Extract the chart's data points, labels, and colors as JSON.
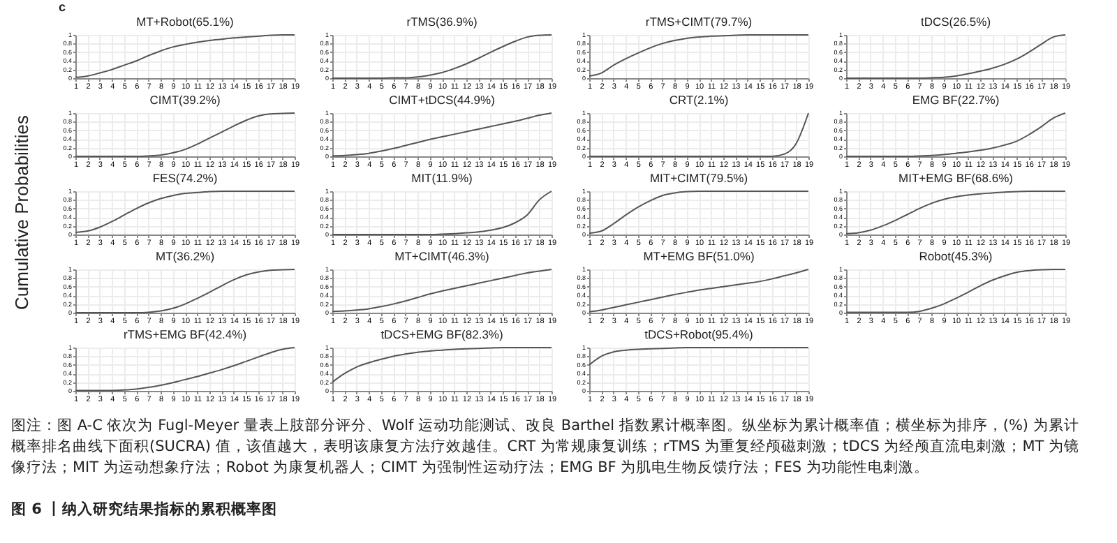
{
  "chart_data": [
    {
      "type": "line",
      "title": "MT+Robot(65.1%)",
      "annotations": [
        "c",
        "图注：图 A-C 依次为 Fugl-Meyer 量表上肢部分评分、Wolf 运动功能测试、改良 Barthel 指数累计概率图。纵坐标为累计概率值；横坐标为排序，(%) 为累计概率排名曲线下面积(SUCRA) 值，该值越大，表明该康复方法疗效越佳。CRT 为常规康复训练；rTMS 为重复经颅磁刺激；tDCS 为经颅直流电刺激；MT 为镜像疗法；MIT 为运动想象疗法；Robot 为康复机器人；CIMT 为强制性运动疗法；EMG BF 为肌电生物反馈疗法；FES 为功能性电刺激。",
        "图 6 丨纳入研究结果指标的累积概率图"
      ],
      "color": "#555555",
      "grid": true,
      "xlim": [
        1,
        19
      ],
      "ylim": [
        0,
        1
      ],
      "xticks": [
        1,
        2,
        3,
        4,
        5,
        6,
        7,
        8,
        9,
        10,
        11,
        12,
        13,
        14,
        15,
        16,
        17,
        18,
        19
      ],
      "yticks": [
        0,
        0.2,
        0.4,
        0.6,
        0.8,
        1
      ],
      "x": [
        1,
        2,
        3,
        4,
        5,
        6,
        7,
        8,
        9,
        10,
        11,
        12,
        13,
        14,
        15,
        16,
        17,
        18,
        19
      ],
      "values": [
        0.02,
        0.05,
        0.12,
        0.2,
        0.3,
        0.4,
        0.52,
        0.63,
        0.72,
        0.78,
        0.83,
        0.87,
        0.9,
        0.93,
        0.95,
        0.97,
        0.99,
        1,
        1
      ]
    },
    {
      "type": "line",
      "title": "rTMS(36.9%)",
      "color": "#555555",
      "grid": true,
      "xlim": [
        1,
        19
      ],
      "ylim": [
        0,
        1
      ],
      "xticks": [
        1,
        2,
        3,
        4,
        5,
        6,
        7,
        8,
        9,
        10,
        11,
        12,
        13,
        14,
        15,
        16,
        17,
        18,
        19
      ],
      "yticks": [
        0,
        0.2,
        0.4,
        0.6,
        0.8,
        1
      ],
      "x": [
        1,
        2,
        3,
        4,
        5,
        6,
        7,
        8,
        9,
        10,
        11,
        12,
        13,
        14,
        15,
        16,
        17,
        18,
        19
      ],
      "values": [
        0,
        0,
        0,
        0,
        0,
        0.01,
        0.01,
        0.03,
        0.07,
        0.13,
        0.22,
        0.33,
        0.46,
        0.6,
        0.73,
        0.85,
        0.95,
        0.99,
        1
      ]
    },
    {
      "type": "line",
      "title": "rTMS+CIMT(79.7%)",
      "color": "#555555",
      "grid": true,
      "xlim": [
        1,
        19
      ],
      "ylim": [
        0,
        1
      ],
      "xticks": [
        1,
        2,
        3,
        4,
        5,
        6,
        7,
        8,
        9,
        10,
        11,
        12,
        13,
        14,
        15,
        16,
        17,
        18,
        19
      ],
      "yticks": [
        0,
        0.2,
        0.4,
        0.6,
        0.8,
        1
      ],
      "x": [
        1,
        2,
        3,
        4,
        5,
        6,
        7,
        8,
        9,
        10,
        11,
        12,
        13,
        14,
        15,
        16,
        17,
        18,
        19
      ],
      "values": [
        0.05,
        0.12,
        0.3,
        0.45,
        0.58,
        0.7,
        0.8,
        0.87,
        0.92,
        0.95,
        0.97,
        0.98,
        0.99,
        1,
        1,
        1,
        1,
        1,
        1
      ]
    },
    {
      "type": "line",
      "title": "tDCS(26.5%)",
      "color": "#555555",
      "grid": true,
      "xlim": [
        1,
        19
      ],
      "ylim": [
        0,
        1
      ],
      "xticks": [
        1,
        2,
        3,
        4,
        5,
        6,
        7,
        8,
        9,
        10,
        11,
        12,
        13,
        14,
        15,
        16,
        17,
        18,
        19
      ],
      "yticks": [
        0,
        0.2,
        0.4,
        0.6,
        0.8,
        1
      ],
      "x": [
        1,
        2,
        3,
        4,
        5,
        6,
        7,
        8,
        9,
        10,
        11,
        12,
        13,
        14,
        15,
        16,
        17,
        18,
        19
      ],
      "values": [
        0,
        0,
        0,
        0,
        0,
        0,
        0,
        0.01,
        0.02,
        0.05,
        0.1,
        0.16,
        0.23,
        0.32,
        0.44,
        0.6,
        0.78,
        0.95,
        1
      ]
    },
    {
      "type": "line",
      "title": "CIMT(39.2%)",
      "color": "#555555",
      "grid": true,
      "xlim": [
        1,
        19
      ],
      "ylim": [
        0,
        1
      ],
      "xticks": [
        1,
        2,
        3,
        4,
        5,
        6,
        7,
        8,
        9,
        10,
        11,
        12,
        13,
        14,
        15,
        16,
        17,
        18,
        19
      ],
      "yticks": [
        0,
        0.2,
        0.4,
        0.6,
        0.8,
        1
      ],
      "x": [
        1,
        2,
        3,
        4,
        5,
        6,
        7,
        8,
        9,
        10,
        11,
        12,
        13,
        14,
        15,
        16,
        17,
        18,
        19
      ],
      "values": [
        0,
        0,
        0,
        0,
        0,
        0,
        0.01,
        0.03,
        0.08,
        0.16,
        0.28,
        0.42,
        0.56,
        0.7,
        0.83,
        0.93,
        0.98,
        0.99,
        1
      ]
    },
    {
      "type": "line",
      "title": "CIMT+tDCS(44.9%)",
      "color": "#555555",
      "grid": true,
      "xlim": [
        1,
        19
      ],
      "ylim": [
        0,
        1
      ],
      "xticks": [
        1,
        2,
        3,
        4,
        5,
        6,
        7,
        8,
        9,
        10,
        11,
        12,
        13,
        14,
        15,
        16,
        17,
        18,
        19
      ],
      "yticks": [
        0,
        0.2,
        0.4,
        0.6,
        0.8,
        1
      ],
      "x": [
        1,
        2,
        3,
        4,
        5,
        6,
        7,
        8,
        9,
        10,
        11,
        12,
        13,
        14,
        15,
        16,
        17,
        18,
        19
      ],
      "values": [
        0.01,
        0.02,
        0.04,
        0.07,
        0.12,
        0.18,
        0.25,
        0.32,
        0.39,
        0.45,
        0.51,
        0.57,
        0.63,
        0.69,
        0.75,
        0.81,
        0.88,
        0.95,
        1
      ]
    },
    {
      "type": "line",
      "title": "CRT(2.1%)",
      "color": "#555555",
      "grid": true,
      "xlim": [
        1,
        19
      ],
      "ylim": [
        0,
        1
      ],
      "xticks": [
        1,
        2,
        3,
        4,
        5,
        6,
        7,
        8,
        9,
        10,
        11,
        12,
        13,
        14,
        15,
        16,
        17,
        18,
        19
      ],
      "yticks": [
        0,
        0.2,
        0.4,
        0.6,
        0.8,
        1
      ],
      "x": [
        1,
        2,
        3,
        4,
        5,
        6,
        7,
        8,
        9,
        10,
        11,
        12,
        13,
        14,
        15,
        16,
        17,
        18,
        19
      ],
      "values": [
        0,
        0,
        0,
        0,
        0,
        0,
        0,
        0,
        0,
        0,
        0,
        0,
        0,
        0,
        0,
        0,
        0.05,
        0.3,
        1
      ]
    },
    {
      "type": "line",
      "title": "EMG BF(22.7%)",
      "color": "#555555",
      "grid": true,
      "xlim": [
        1,
        19
      ],
      "ylim": [
        0,
        1
      ],
      "xticks": [
        1,
        2,
        3,
        4,
        5,
        6,
        7,
        8,
        9,
        10,
        11,
        12,
        13,
        14,
        15,
        16,
        17,
        18,
        19
      ],
      "yticks": [
        0,
        0.2,
        0.4,
        0.6,
        0.8,
        1
      ],
      "x": [
        1,
        2,
        3,
        4,
        5,
        6,
        7,
        8,
        9,
        10,
        11,
        12,
        13,
        14,
        15,
        16,
        17,
        18,
        19
      ],
      "values": [
        0,
        0,
        0,
        0,
        0,
        0,
        0.01,
        0.02,
        0.04,
        0.07,
        0.1,
        0.14,
        0.19,
        0.26,
        0.35,
        0.5,
        0.68,
        0.88,
        1
      ]
    },
    {
      "type": "line",
      "title": "FES(74.2%)",
      "ylabel": "Cumulative Probabilities",
      "color": "#555555",
      "grid": true,
      "xlim": [
        1,
        19
      ],
      "ylim": [
        0,
        1
      ],
      "xticks": [
        1,
        2,
        3,
        4,
        5,
        6,
        7,
        8,
        9,
        10,
        11,
        12,
        13,
        14,
        15,
        16,
        17,
        18,
        19
      ],
      "yticks": [
        0,
        0.2,
        0.4,
        0.6,
        0.8,
        1
      ],
      "x": [
        1,
        2,
        3,
        4,
        5,
        6,
        7,
        8,
        9,
        10,
        11,
        12,
        13,
        14,
        15,
        16,
        17,
        18,
        19
      ],
      "values": [
        0.05,
        0.08,
        0.17,
        0.3,
        0.45,
        0.6,
        0.73,
        0.83,
        0.9,
        0.95,
        0.97,
        0.99,
        1,
        1,
        1,
        1,
        1,
        1,
        1
      ]
    },
    {
      "type": "line",
      "title": "MIT(11.9%)",
      "color": "#555555",
      "grid": true,
      "xlim": [
        1,
        19
      ],
      "ylim": [
        0,
        1
      ],
      "xticks": [
        1,
        2,
        3,
        4,
        5,
        6,
        7,
        8,
        9,
        10,
        11,
        12,
        13,
        14,
        15,
        16,
        17,
        18,
        19
      ],
      "yticks": [
        0,
        0.2,
        0.4,
        0.6,
        0.8,
        1
      ],
      "x": [
        1,
        2,
        3,
        4,
        5,
        6,
        7,
        8,
        9,
        10,
        11,
        12,
        13,
        14,
        15,
        16,
        17,
        18,
        19
      ],
      "values": [
        0,
        0,
        0,
        0,
        0,
        0,
        0,
        0,
        0,
        0.01,
        0.02,
        0.04,
        0.06,
        0.1,
        0.16,
        0.27,
        0.45,
        0.8,
        1
      ]
    },
    {
      "type": "line",
      "title": "MIT+CIMT(79.5%)",
      "color": "#555555",
      "grid": true,
      "xlim": [
        1,
        19
      ],
      "ylim": [
        0,
        1
      ],
      "xticks": [
        1,
        2,
        3,
        4,
        5,
        6,
        7,
        8,
        9,
        10,
        11,
        12,
        13,
        14,
        15,
        16,
        17,
        18,
        19
      ],
      "yticks": [
        0,
        0.2,
        0.4,
        0.6,
        0.8,
        1
      ],
      "x": [
        1,
        2,
        3,
        4,
        5,
        6,
        7,
        8,
        9,
        10,
        11,
        12,
        13,
        14,
        15,
        16,
        17,
        18,
        19
      ],
      "values": [
        0.03,
        0.08,
        0.25,
        0.45,
        0.63,
        0.78,
        0.9,
        0.96,
        0.99,
        1,
        1,
        1,
        1,
        1,
        1,
        1,
        1,
        1,
        1
      ]
    },
    {
      "type": "line",
      "title": "MIT+EMG BF(68.6%)",
      "color": "#555555",
      "grid": true,
      "xlim": [
        1,
        19
      ],
      "ylim": [
        0,
        1
      ],
      "xticks": [
        1,
        2,
        3,
        4,
        5,
        6,
        7,
        8,
        9,
        10,
        11,
        12,
        13,
        14,
        15,
        16,
        17,
        18,
        19
      ],
      "yticks": [
        0,
        0.2,
        0.4,
        0.6,
        0.8,
        1
      ],
      "x": [
        1,
        2,
        3,
        4,
        5,
        6,
        7,
        8,
        9,
        10,
        11,
        12,
        13,
        14,
        15,
        16,
        17,
        18,
        19
      ],
      "values": [
        0.02,
        0.04,
        0.1,
        0.2,
        0.32,
        0.46,
        0.6,
        0.72,
        0.81,
        0.87,
        0.91,
        0.94,
        0.96,
        0.98,
        0.99,
        1,
        1,
        1,
        1
      ]
    },
    {
      "type": "line",
      "title": "MT(36.2%)",
      "color": "#555555",
      "grid": true,
      "xlim": [
        1,
        19
      ],
      "ylim": [
        0,
        1
      ],
      "xticks": [
        1,
        2,
        3,
        4,
        5,
        6,
        7,
        8,
        9,
        10,
        11,
        12,
        13,
        14,
        15,
        16,
        17,
        18,
        19
      ],
      "yticks": [
        0,
        0.2,
        0.4,
        0.6,
        0.8,
        1
      ],
      "x": [
        1,
        2,
        3,
        4,
        5,
        6,
        7,
        8,
        9,
        10,
        11,
        12,
        13,
        14,
        15,
        16,
        17,
        18,
        19
      ],
      "values": [
        0,
        0,
        0,
        0,
        0,
        0,
        0.01,
        0.04,
        0.1,
        0.2,
        0.33,
        0.47,
        0.62,
        0.76,
        0.87,
        0.94,
        0.98,
        0.99,
        1
      ]
    },
    {
      "type": "line",
      "title": "MT+CIMT(46.3%)",
      "color": "#555555",
      "grid": true,
      "xlim": [
        1,
        19
      ],
      "ylim": [
        0,
        1
      ],
      "xticks": [
        1,
        2,
        3,
        4,
        5,
        6,
        7,
        8,
        9,
        10,
        11,
        12,
        13,
        14,
        15,
        16,
        17,
        18,
        19
      ],
      "yticks": [
        0,
        0.2,
        0.4,
        0.6,
        0.8,
        1
      ],
      "x": [
        1,
        2,
        3,
        4,
        5,
        6,
        7,
        8,
        9,
        10,
        11,
        12,
        13,
        14,
        15,
        16,
        17,
        18,
        19
      ],
      "values": [
        0.03,
        0.04,
        0.06,
        0.09,
        0.14,
        0.2,
        0.27,
        0.35,
        0.43,
        0.5,
        0.56,
        0.62,
        0.68,
        0.74,
        0.8,
        0.86,
        0.92,
        0.96,
        1
      ]
    },
    {
      "type": "line",
      "title": "MT+EMG BF(51.0%)",
      "color": "#555555",
      "grid": true,
      "xlim": [
        1,
        19
      ],
      "ylim": [
        0,
        1
      ],
      "xticks": [
        1,
        2,
        3,
        4,
        5,
        6,
        7,
        8,
        9,
        10,
        11,
        12,
        13,
        14,
        15,
        16,
        17,
        18,
        19
      ],
      "yticks": [
        0,
        0.2,
        0.4,
        0.6,
        0.8,
        1
      ],
      "x": [
        1,
        2,
        3,
        4,
        5,
        6,
        7,
        8,
        9,
        10,
        11,
        12,
        13,
        14,
        15,
        16,
        17,
        18,
        19
      ],
      "values": [
        0.02,
        0.06,
        0.12,
        0.18,
        0.24,
        0.3,
        0.36,
        0.42,
        0.47,
        0.52,
        0.56,
        0.6,
        0.64,
        0.68,
        0.72,
        0.78,
        0.85,
        0.92,
        1
      ]
    },
    {
      "type": "line",
      "title": "Robot(45.3%)",
      "color": "#555555",
      "grid": true,
      "xlim": [
        1,
        19
      ],
      "ylim": [
        0,
        1
      ],
      "xticks": [
        1,
        2,
        3,
        4,
        5,
        6,
        7,
        8,
        9,
        10,
        11,
        12,
        13,
        14,
        15,
        16,
        17,
        18,
        19
      ],
      "yticks": [
        0,
        0.2,
        0.4,
        0.6,
        0.8,
        1
      ],
      "x": [
        1,
        2,
        3,
        4,
        5,
        6,
        7,
        8,
        9,
        10,
        11,
        12,
        13,
        14,
        15,
        16,
        17,
        18,
        19
      ],
      "values": [
        0.01,
        0.01,
        0.01,
        0.01,
        0.01,
        0.01,
        0.03,
        0.1,
        0.2,
        0.33,
        0.47,
        0.62,
        0.75,
        0.85,
        0.93,
        0.97,
        0.99,
        1,
        1
      ]
    },
    {
      "type": "line",
      "title": "rTMS+EMG BF(42.4%)",
      "color": "#555555",
      "grid": true,
      "xlim": [
        1,
        19
      ],
      "ylim": [
        0,
        1
      ],
      "xticks": [
        1,
        2,
        3,
        4,
        5,
        6,
        7,
        8,
        9,
        10,
        11,
        12,
        13,
        14,
        15,
        16,
        17,
        18,
        19
      ],
      "yticks": [
        0,
        0.2,
        0.4,
        0.6,
        0.8,
        1
      ],
      "x": [
        1,
        2,
        3,
        4,
        5,
        6,
        7,
        8,
        9,
        10,
        11,
        12,
        13,
        14,
        15,
        16,
        17,
        18,
        19
      ],
      "values": [
        0.01,
        0.01,
        0.01,
        0.01,
        0.02,
        0.04,
        0.08,
        0.13,
        0.19,
        0.26,
        0.33,
        0.41,
        0.49,
        0.58,
        0.68,
        0.78,
        0.88,
        0.96,
        1
      ]
    },
    {
      "type": "line",
      "title": "tDCS+EMG BF(82.3%)",
      "color": "#555555",
      "grid": true,
      "xlim": [
        1,
        19
      ],
      "ylim": [
        0,
        1
      ],
      "xticks": [
        1,
        2,
        3,
        4,
        5,
        6,
        7,
        8,
        9,
        10,
        11,
        12,
        13,
        14,
        15,
        16,
        17,
        18,
        19
      ],
      "yticks": [
        0,
        0.2,
        0.4,
        0.6,
        0.8,
        1
      ],
      "x": [
        1,
        2,
        3,
        4,
        5,
        6,
        7,
        8,
        9,
        10,
        11,
        12,
        13,
        14,
        15,
        16,
        17,
        18,
        19
      ],
      "values": [
        0.2,
        0.4,
        0.55,
        0.65,
        0.73,
        0.8,
        0.85,
        0.89,
        0.92,
        0.94,
        0.96,
        0.97,
        0.98,
        0.99,
        1,
        1,
        1,
        1,
        1
      ]
    },
    {
      "type": "line",
      "title": "tDCS+Robot(95.4%)",
      "color": "#555555",
      "grid": true,
      "xlim": [
        1,
        19
      ],
      "ylim": [
        0,
        1
      ],
      "xticks": [
        1,
        2,
        3,
        4,
        5,
        6,
        7,
        8,
        9,
        10,
        11,
        12,
        13,
        14,
        15,
        16,
        17,
        18,
        19
      ],
      "yticks": [
        0,
        0.2,
        0.4,
        0.6,
        0.8,
        1
      ],
      "x": [
        1,
        2,
        3,
        4,
        5,
        6,
        7,
        8,
        9,
        10,
        11,
        12,
        13,
        14,
        15,
        16,
        17,
        18,
        19
      ],
      "values": [
        0.6,
        0.8,
        0.9,
        0.94,
        0.96,
        0.97,
        0.98,
        0.99,
        1,
        1,
        1,
        1,
        1,
        1,
        1,
        1,
        1,
        1,
        1
      ]
    }
  ]
}
